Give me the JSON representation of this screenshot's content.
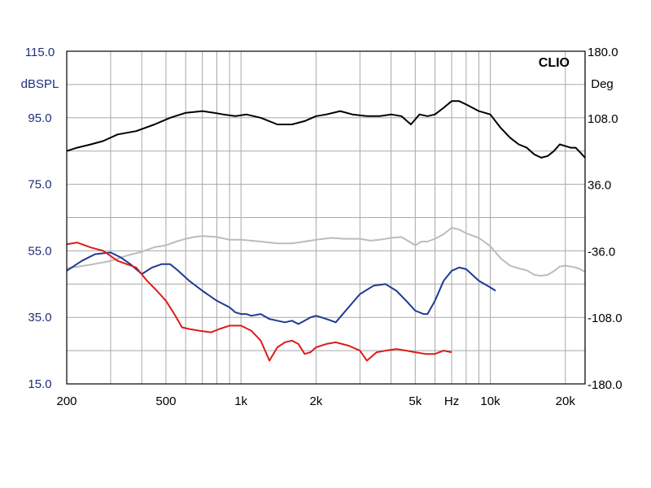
{
  "chart_data": {
    "type": "line",
    "brand": "CLIO",
    "y_left_unit": "dBSPL",
    "y_right_unit": "Deg",
    "x_scale": "log",
    "xlim": [
      200,
      24000
    ],
    "ylim_left": [
      15,
      115
    ],
    "ylim_right": [
      -180,
      180
    ],
    "grid": true,
    "x_ticks": [
      {
        "value": 200,
        "label": "200"
      },
      {
        "value": 500,
        "label": "500"
      },
      {
        "value": 1000,
        "label": "1k"
      },
      {
        "value": 2000,
        "label": "2k"
      },
      {
        "value": 5000,
        "label": "5k"
      },
      {
        "value": 10000,
        "label": "10k"
      },
      {
        "value": 20000,
        "label": "20k"
      }
    ],
    "x_unit_label": "Hz",
    "x_unit_label_at": 7000,
    "y_left_ticks": [
      "115.0",
      "95.0",
      "75.0",
      "55.0",
      "35.0",
      "15.0"
    ],
    "y_left_tick_values": [
      115,
      95,
      75,
      55,
      35,
      15
    ],
    "y_right_ticks": [
      "180.0",
      "108.0",
      "36.0",
      "-36.0",
      "-108.0",
      "-180.0"
    ],
    "y_right_tick_values": [
      180,
      108,
      36,
      -36,
      -108,
      -180
    ],
    "series": [
      {
        "color": "#000000",
        "x": [
          200,
          220,
          250,
          280,
          320,
          380,
          450,
          520,
          600,
          700,
          780,
          850,
          950,
          1050,
          1200,
          1400,
          1600,
          1800,
          2000,
          2200,
          2500,
          2800,
          3200,
          3600,
          4000,
          4400,
          4800,
          5200,
          5600,
          6000,
          6500,
          7000,
          7500,
          8000,
          9000,
          10000,
          11000,
          12000,
          13000,
          14000,
          15000,
          16000,
          17000,
          18000,
          19000,
          20000,
          21000,
          22000,
          23000,
          24000
        ],
        "values": [
          85,
          86,
          87,
          88,
          90,
          91,
          93,
          95,
          96.5,
          97,
          96.5,
          96,
          95.5,
          96,
          95,
          93,
          93,
          94,
          95.5,
          96,
          97,
          96,
          95.5,
          95.5,
          96,
          95.5,
          93,
          96,
          95.5,
          96,
          98,
          100,
          100,
          99,
          97,
          96,
          92,
          89,
          87,
          86,
          84,
          83,
          83.5,
          85,
          87,
          86.5,
          86,
          86,
          84.5,
          83
        ]
      },
      {
        "color": "#bcbcbc",
        "x": [
          200,
          250,
          300,
          350,
          400,
          450,
          500,
          550,
          600,
          650,
          700,
          800,
          900,
          1000,
          1200,
          1400,
          1600,
          1800,
          2000,
          2300,
          2600,
          3000,
          3300,
          3600,
          4000,
          4400,
          4800,
          5000,
          5300,
          5600,
          6000,
          6500,
          7000,
          7500,
          8000,
          9000,
          10000,
          11000,
          12000,
          13000,
          14000,
          15000,
          16000,
          17000,
          18000,
          19000,
          20000,
          21000,
          22000,
          23000,
          24000
        ],
        "values": [
          -55,
          -51,
          -47,
          -41,
          -37,
          -32,
          -30,
          -26,
          -23,
          -21,
          -20,
          -21,
          -24,
          -24,
          -26,
          -28,
          -28,
          -26,
          -24,
          -22,
          -23,
          -23,
          -25,
          -24,
          -22,
          -21,
          -27,
          -30,
          -26,
          -26,
          -23,
          -18,
          -11,
          -13,
          -17,
          -22,
          -31,
          -44,
          -52,
          -55,
          -57,
          -62,
          -63,
          -62,
          -58,
          -53,
          -52,
          -53,
          -54,
          -56,
          -59
        ]
      },
      {
        "color": "#1f3a93",
        "x": [
          200,
          230,
          260,
          300,
          330,
          360,
          400,
          440,
          480,
          520,
          560,
          620,
          700,
          800,
          900,
          950,
          1000,
          1050,
          1100,
          1200,
          1300,
          1400,
          1500,
          1600,
          1700,
          1800,
          1900,
          2000,
          2200,
          2400,
          2700,
          3000,
          3400,
          3800,
          4200,
          4600,
          5000,
          5400,
          5600,
          6000,
          6500,
          7000,
          7500,
          8000,
          9000,
          10000,
          10500
        ],
        "values": [
          49,
          52,
          54,
          54.5,
          53,
          51,
          48,
          50,
          51,
          51,
          49,
          46,
          43,
          40,
          38,
          36.5,
          36,
          36,
          35.5,
          36,
          34.5,
          34,
          33.5,
          34,
          33,
          34,
          35,
          35.5,
          34.5,
          33.5,
          38,
          42,
          44.5,
          45,
          43,
          40,
          37,
          36,
          36,
          40,
          46,
          49,
          50,
          49.5,
          46,
          44,
          43
        ]
      },
      {
        "color": "#e01a1a",
        "x": [
          200,
          220,
          250,
          280,
          320,
          380,
          420,
          460,
          500,
          540,
          580,
          620,
          680,
          760,
          820,
          900,
          1000,
          1100,
          1200,
          1300,
          1400,
          1500,
          1600,
          1700,
          1800,
          1900,
          2000,
          2200,
          2400,
          2700,
          3000,
          3200,
          3500,
          3800,
          4200,
          4600,
          5000,
          5500,
          6000,
          6500,
          7000
        ],
        "values": [
          57,
          57.5,
          56,
          55,
          52,
          50,
          46,
          43,
          40,
          36,
          32,
          31.5,
          31,
          30.5,
          31.5,
          32.5,
          32.5,
          31,
          28,
          22,
          26,
          27.5,
          28,
          27,
          24,
          24.5,
          26,
          27,
          27.5,
          26.5,
          25,
          22,
          24.5,
          25,
          25.5,
          25,
          24.5,
          24,
          24,
          25,
          24.5
        ]
      }
    ]
  }
}
